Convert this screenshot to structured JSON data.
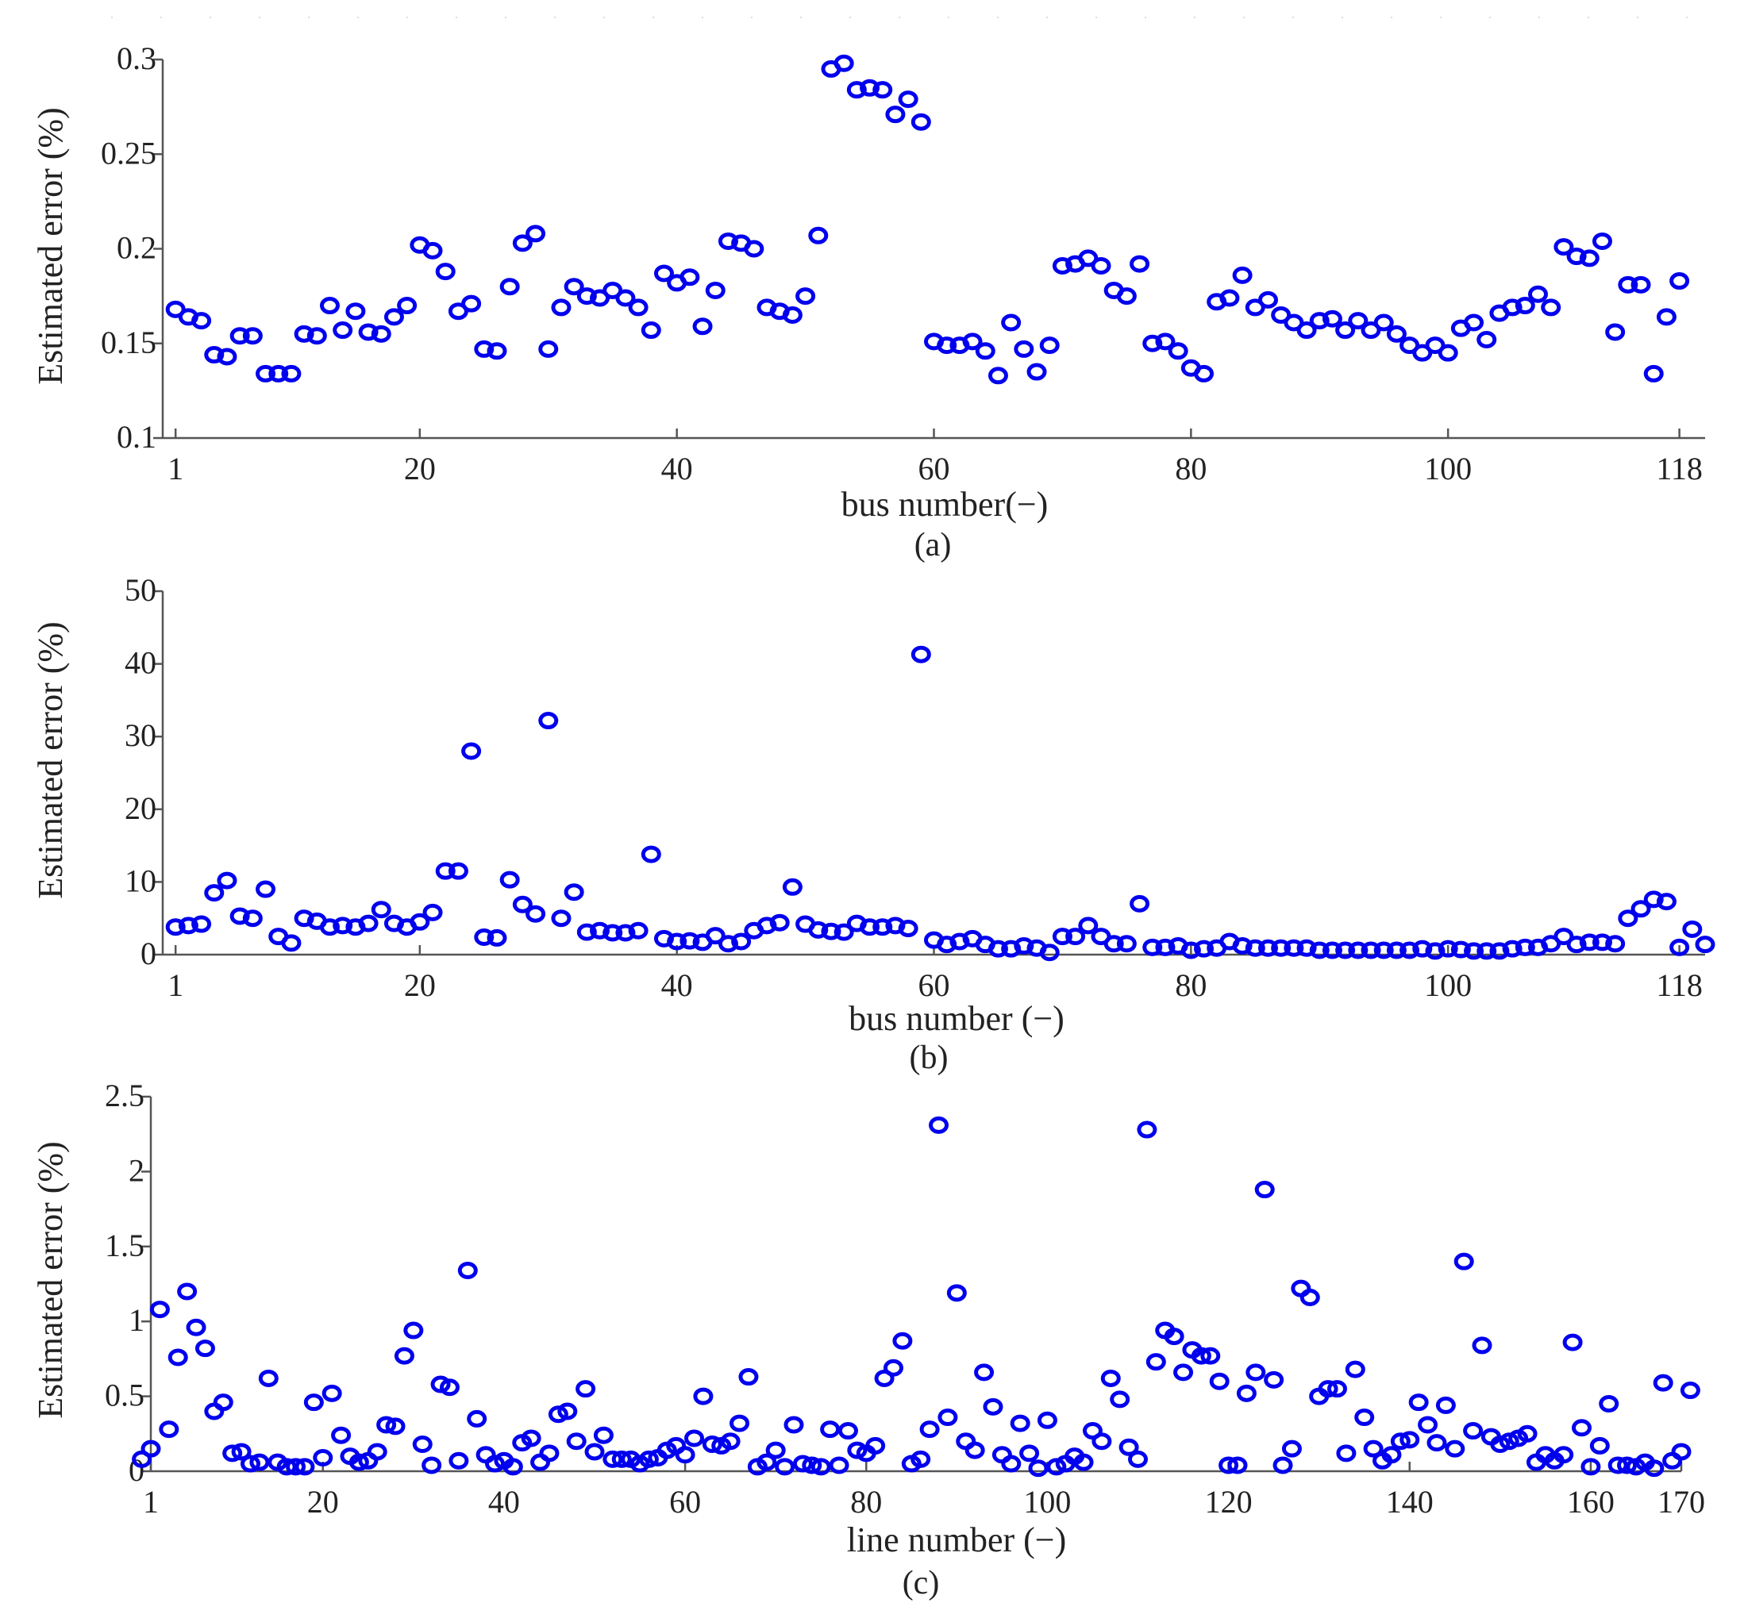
{
  "figure": {
    "marker_color": "#0000ee",
    "axis_color": "#555555"
  },
  "chart_data": [
    {
      "type": "scatter",
      "caption": "(a)",
      "xlabel": "bus number(−)",
      "ylabel": "Estimated error (%)",
      "xlim": [
        0,
        120
      ],
      "ylim": [
        0.1,
        0.3
      ],
      "xticks": [
        {
          "value": 1,
          "label": "1"
        },
        {
          "value": 20,
          "label": "20"
        },
        {
          "value": 40,
          "label": "40"
        },
        {
          "value": 60,
          "label": "60"
        },
        {
          "value": 80,
          "label": "80"
        },
        {
          "value": 100,
          "label": "100"
        },
        {
          "value": 118,
          "label": "118"
        }
      ],
      "yticks": [
        {
          "value": 0.1,
          "label": "0.1"
        },
        {
          "value": 0.15,
          "label": "0.15"
        },
        {
          "value": 0.2,
          "label": "0.2"
        },
        {
          "value": 0.25,
          "label": "0.25"
        },
        {
          "value": 0.3,
          "label": "0.3"
        }
      ],
      "marker": "o",
      "x_start": 1,
      "values": [
        0.168,
        0.164,
        0.162,
        0.144,
        0.143,
        0.154,
        0.154,
        0.134,
        0.134,
        0.134,
        0.155,
        0.154,
        0.17,
        0.157,
        0.167,
        0.156,
        0.155,
        0.164,
        0.17,
        0.202,
        0.199,
        0.188,
        0.167,
        0.171,
        0.147,
        0.146,
        0.18,
        0.203,
        0.208,
        0.147,
        0.169,
        0.18,
        0.175,
        0.174,
        0.178,
        0.174,
        0.169,
        0.157,
        0.187,
        0.182,
        0.185,
        0.159,
        0.178,
        0.204,
        0.203,
        0.2,
        0.169,
        0.167,
        0.165,
        0.175,
        0.207,
        0.295,
        0.298,
        0.284,
        0.285,
        0.284,
        0.271,
        0.279,
        0.267,
        0.151,
        0.149,
        0.149,
        0.151,
        0.146,
        0.133,
        0.161,
        0.147,
        0.135,
        0.149,
        0.191,
        0.192,
        0.195,
        0.191,
        0.178,
        0.175,
        0.192,
        0.15,
        0.151,
        0.146,
        0.137,
        0.134,
        0.172,
        0.174,
        0.186,
        0.169,
        0.173,
        0.165,
        0.161,
        0.157,
        0.162,
        0.163,
        0.157,
        0.162,
        0.157,
        0.161,
        0.155,
        0.149,
        0.145,
        0.149,
        0.145,
        0.158,
        0.161,
        0.152,
        0.166,
        0.169,
        0.17,
        0.176,
        0.169,
        0.201,
        0.196,
        0.195,
        0.204,
        0.156,
        0.181,
        0.181,
        0.134,
        0.164,
        0.183
      ]
    },
    {
      "type": "scatter",
      "caption": "(b)",
      "xlabel": "bus number (−)",
      "ylabel": "Estimated error (%)",
      "xlim": [
        0,
        120
      ],
      "ylim": [
        0,
        50
      ],
      "xticks": [
        {
          "value": 1,
          "label": "1"
        },
        {
          "value": 20,
          "label": "20"
        },
        {
          "value": 40,
          "label": "40"
        },
        {
          "value": 60,
          "label": "60"
        },
        {
          "value": 80,
          "label": "80"
        },
        {
          "value": 100,
          "label": "100"
        },
        {
          "value": 118,
          "label": "118"
        }
      ],
      "yticks": [
        {
          "value": 0,
          "label": "0"
        },
        {
          "value": 10,
          "label": "10"
        },
        {
          "value": 20,
          "label": "20"
        },
        {
          "value": 30,
          "label": "30"
        },
        {
          "value": 40,
          "label": "40"
        },
        {
          "value": 50,
          "label": "50"
        }
      ],
      "marker": "o",
      "x_start": 1,
      "values": [
        3.8,
        4.0,
        4.2,
        8.5,
        10.2,
        5.3,
        5.0,
        9.0,
        2.5,
        1.6,
        5.0,
        4.6,
        3.8,
        4.0,
        3.8,
        4.3,
        6.2,
        4.3,
        3.8,
        4.5,
        5.8,
        11.5,
        11.5,
        28.0,
        2.4,
        2.3,
        10.3,
        6.9,
        5.6,
        32.2,
        5.0,
        8.6,
        3.1,
        3.3,
        3.0,
        3.0,
        3.3,
        13.8,
        2.2,
        1.8,
        1.9,
        1.7,
        2.6,
        1.5,
        1.8,
        3.3,
        4.0,
        4.4,
        9.3,
        4.2,
        3.4,
        3.2,
        3.1,
        4.3,
        3.8,
        3.8,
        4.0,
        3.6,
        41.3,
        2.0,
        1.4,
        1.8,
        2.2,
        1.4,
        0.8,
        0.8,
        1.2,
        0.9,
        0.3,
        2.5,
        2.5,
        4.0,
        2.5,
        1.5,
        1.5,
        7.0,
        1.0,
        1.0,
        1.2,
        0.6,
        0.8,
        0.9,
        1.8,
        1.2,
        0.9,
        0.9,
        0.9,
        0.9,
        0.9,
        0.6,
        0.6,
        0.6,
        0.6,
        0.6,
        0.6,
        0.6,
        0.6,
        0.8,
        0.5,
        0.8,
        0.7,
        0.5,
        0.5,
        0.5,
        0.8,
        1.0,
        1.0,
        1.5,
        2.5,
        1.4,
        1.7,
        1.7,
        1.5,
        5.0,
        6.3,
        7.6,
        7.3,
        1.0,
        3.5,
        1.4
      ]
    },
    {
      "type": "scatter",
      "caption": "(c)",
      "xlabel": "line number (−)",
      "ylabel": "Estimated error (%)",
      "xlim": [
        1,
        170
      ],
      "ylim": [
        0,
        2.5
      ],
      "xticks": [
        {
          "value": 1,
          "label": "1"
        },
        {
          "value": 20,
          "label": "20"
        },
        {
          "value": 40,
          "label": "40"
        },
        {
          "value": 60,
          "label": "60"
        },
        {
          "value": 80,
          "label": "80"
        },
        {
          "value": 100,
          "label": "100"
        },
        {
          "value": 120,
          "label": "120"
        },
        {
          "value": 140,
          "label": "140"
        },
        {
          "value": 160,
          "label": "160"
        },
        {
          "value": 170,
          "label": "170"
        }
      ],
      "yticks": [
        {
          "value": 0,
          "label": "0"
        },
        {
          "value": 0.5,
          "label": "0.5"
        },
        {
          "value": 1,
          "label": "1"
        },
        {
          "value": 1.5,
          "label": "1.5"
        },
        {
          "value": 2,
          "label": "2"
        },
        {
          "value": 2.5,
          "label": "2.5"
        }
      ],
      "marker": "o",
      "x_start": 0,
      "values": [
        0.08,
        0.15,
        1.08,
        0.28,
        0.76,
        1.2,
        0.96,
        0.82,
        0.4,
        0.46,
        0.12,
        0.13,
        0.05,
        0.06,
        0.62,
        0.06,
        0.03,
        0.03,
        0.03,
        0.46,
        0.09,
        0.52,
        0.24,
        0.1,
        0.06,
        0.07,
        0.13,
        0.31,
        0.3,
        0.77,
        0.94,
        0.18,
        0.04,
        0.58,
        0.56,
        0.07,
        1.34,
        0.35,
        0.11,
        0.05,
        0.07,
        0.03,
        0.19,
        0.22,
        0.06,
        0.12,
        0.38,
        0.4,
        0.2,
        0.55,
        0.13,
        0.24,
        0.08,
        0.08,
        0.08,
        0.05,
        0.08,
        0.09,
        0.14,
        0.17,
        0.11,
        0.22,
        0.5,
        0.18,
        0.17,
        0.2,
        0.32,
        0.63,
        0.03,
        0.06,
        0.14,
        0.03,
        0.31,
        0.05,
        0.04,
        0.03,
        0.28,
        0.04,
        0.27,
        0.14,
        0.12,
        0.17,
        0.62,
        0.69,
        0.87,
        0.05,
        0.08,
        0.28,
        2.31,
        0.36,
        1.19,
        0.2,
        0.14,
        0.66,
        0.43,
        0.11,
        0.05,
        0.32,
        0.12,
        0.02,
        0.34,
        0.03,
        0.05,
        0.1,
        0.06,
        0.27,
        0.2,
        0.62,
        0.48,
        0.16,
        0.08,
        2.28,
        0.73,
        0.94,
        0.9,
        0.66,
        0.81,
        0.77,
        0.77,
        0.6,
        0.04,
        0.04,
        0.52,
        0.66,
        1.88,
        0.61,
        0.04,
        0.15,
        1.22,
        1.16,
        0.5,
        0.55,
        0.55,
        0.12,
        0.68,
        0.36,
        0.15,
        0.07,
        0.11,
        0.2,
        0.21,
        0.46,
        0.31,
        0.19,
        0.44,
        0.15,
        1.4,
        0.27,
        0.84,
        0.23,
        0.18,
        0.2,
        0.22,
        0.25,
        0.06,
        0.11,
        0.07,
        0.11,
        0.86,
        0.29,
        0.03,
        0.17,
        0.45,
        0.04,
        0.04,
        0.03,
        0.06,
        0.02,
        0.59,
        0.07,
        0.13,
        0.54
      ]
    }
  ]
}
